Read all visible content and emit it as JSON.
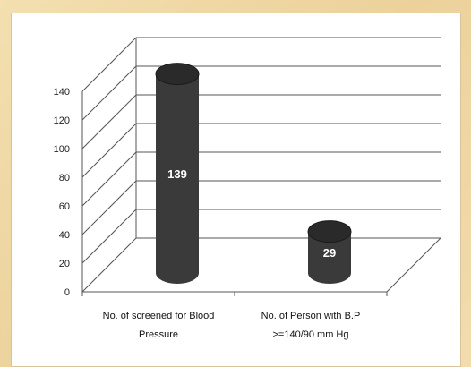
{
  "chart_data": {
    "type": "bar",
    "style": "3d-cylinder",
    "categories": [
      [
        "No. of screened for Blood",
        "Pressure"
      ],
      [
        "No. of Person with B.P",
        ">=140/90 mm Hg"
      ]
    ],
    "values": [
      139,
      29
    ],
    "data_labels": [
      "139",
      "29"
    ],
    "ylim": [
      0,
      140
    ],
    "yticks": [
      "0",
      "20",
      "40",
      "60",
      "80",
      "100",
      "120",
      "140"
    ],
    "title": "",
    "xlabel": "",
    "ylabel": "",
    "grid": true,
    "legend": "none",
    "colors": {
      "bar_body": "#3a3a3a",
      "bar_top": "#2a2a2a",
      "grid": "#555555",
      "panel_bg": "#ffffff",
      "frame_bg": "#f0d9a8"
    }
  }
}
